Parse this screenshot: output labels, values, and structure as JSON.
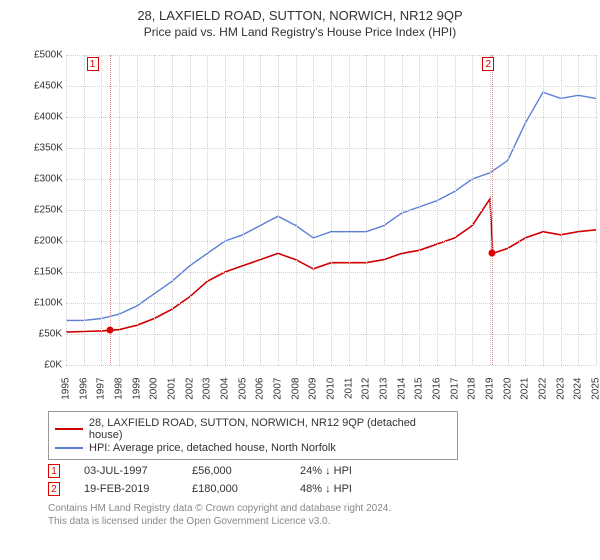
{
  "title_main": "28, LAXFIELD ROAD, SUTTON, NORWICH, NR12 9QP",
  "title_sub": "Price paid vs. HM Land Registry's House Price Index (HPI)",
  "chart": {
    "type": "line",
    "background_color": "#ffffff",
    "grid_color": "#d0d0d0",
    "ylim": [
      0,
      500000
    ],
    "yticks": [
      0,
      50000,
      100000,
      150000,
      200000,
      250000,
      300000,
      350000,
      400000,
      450000,
      500000
    ],
    "yticklabels": [
      "£0K",
      "£50K",
      "£100K",
      "£150K",
      "£200K",
      "£250K",
      "£300K",
      "£350K",
      "£400K",
      "£450K",
      "£500K"
    ],
    "xlim": [
      1995,
      2025
    ],
    "xticks": [
      1995,
      1996,
      1997,
      1998,
      1999,
      2000,
      2001,
      2002,
      2003,
      2004,
      2005,
      2006,
      2007,
      2008,
      2009,
      2010,
      2011,
      2012,
      2013,
      2014,
      2015,
      2016,
      2017,
      2018,
      2019,
      2020,
      2021,
      2022,
      2023,
      2024,
      2025
    ],
    "series": [
      {
        "name": "property",
        "color": "#d00000",
        "width": 1.6,
        "x": [
          1995,
          1996,
          1997,
          1998,
          1999,
          2000,
          2001,
          2002,
          2003,
          2004,
          2005,
          2006,
          2007,
          2008,
          2009,
          2010,
          2011,
          2012,
          2013,
          2014,
          2015,
          2016,
          2017,
          2018,
          2019,
          2019.15,
          2020,
          2021,
          2022,
          2023,
          2024,
          2025
        ],
        "y": [
          53000,
          54000,
          55000,
          57000,
          64000,
          75000,
          90000,
          110000,
          135000,
          150000,
          160000,
          170000,
          180000,
          170000,
          155000,
          165000,
          165000,
          165000,
          170000,
          180000,
          185000,
          195000,
          205000,
          225000,
          268000,
          180000,
          188000,
          205000,
          215000,
          210000,
          215000,
          218000
        ]
      },
      {
        "name": "hpi",
        "color": "#5b7fd6",
        "width": 1.4,
        "x": [
          1995,
          1996,
          1997,
          1998,
          1999,
          2000,
          2001,
          2002,
          2003,
          2004,
          2005,
          2006,
          2007,
          2008,
          2009,
          2010,
          2011,
          2012,
          2013,
          2014,
          2015,
          2016,
          2017,
          2018,
          2019,
          2020,
          2021,
          2022,
          2023,
          2024,
          2025
        ],
        "y": [
          72000,
          72000,
          75000,
          82000,
          95000,
          115000,
          135000,
          160000,
          180000,
          200000,
          210000,
          225000,
          240000,
          225000,
          205000,
          215000,
          215000,
          215000,
          225000,
          245000,
          255000,
          265000,
          280000,
          300000,
          310000,
          330000,
          390000,
          440000,
          430000,
          435000,
          430000
        ]
      }
    ],
    "markers": [
      {
        "n": "1",
        "x": 1997.5,
        "y": 56000,
        "box_x": 1996.5
      },
      {
        "n": "2",
        "x": 2019.13,
        "y": 180000,
        "box_x": 2018.9
      }
    ]
  },
  "legend": {
    "items": [
      {
        "color": "#d00000",
        "label": "28, LAXFIELD ROAD, SUTTON, NORWICH, NR12 9QP (detached house)"
      },
      {
        "color": "#5b7fd6",
        "label": "HPI: Average price, detached house, North Norfolk"
      }
    ]
  },
  "transactions": [
    {
      "n": "1",
      "date": "03-JUL-1997",
      "price": "£56,000",
      "delta": "24% ↓ HPI"
    },
    {
      "n": "2",
      "date": "19-FEB-2019",
      "price": "£180,000",
      "delta": "48% ↓ HPI"
    }
  ],
  "footer1": "Contains HM Land Registry data © Crown copyright and database right 2024.",
  "footer2": "This data is licensed under the Open Government Licence v3.0."
}
